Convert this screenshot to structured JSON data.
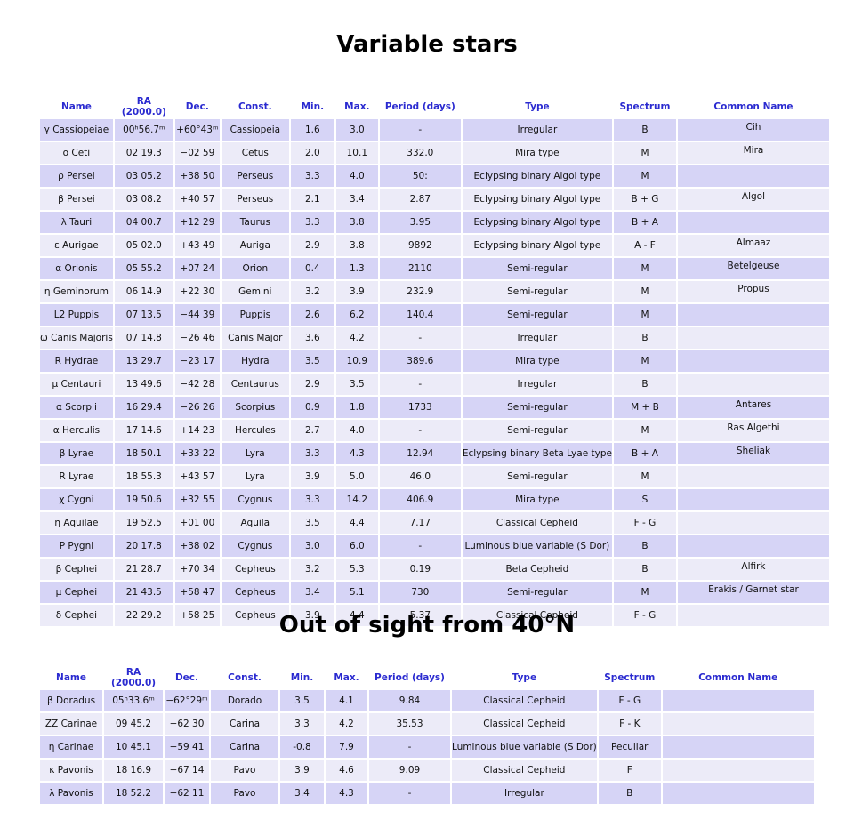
{
  "sections": [
    {
      "title": "Variable stars",
      "headers": [
        "Name",
        "RA (2000.0)",
        "Dec.",
        "Const.",
        "Min.",
        "Max.",
        "Period (days)",
        "Type",
        "Spectrum",
        "Common Name"
      ],
      "rows": [
        {
          "name": "γ Cassiopeiae",
          "ra": "00ʰ56.7ᵐ",
          "dec": "+60°43ᵐ",
          "const": "Cassiopeia",
          "min": "1.6",
          "max": "3.0",
          "period": "-",
          "type": "Irregular",
          "spectrum": "B",
          "common": "Cih"
        },
        {
          "name": "ο Ceti",
          "ra": "02 19.3",
          "dec": "−02 59",
          "const": "Cetus",
          "min": "2.0",
          "max": "10.1",
          "period": "332.0",
          "type": "Mira type",
          "spectrum": "M",
          "common": "Mira"
        },
        {
          "name": "ρ Persei",
          "ra": "03 05.2",
          "dec": "+38 50",
          "const": "Perseus",
          "min": "3.3",
          "max": "4.0",
          "period": "50:",
          "type": "Eclypsing binary Algol type",
          "spectrum": "M"
        },
        {
          "name": "β Persei",
          "ra": "03 08.2",
          "dec": "+40 57",
          "const": "Perseus",
          "min": "2.1",
          "max": "3.4",
          "period": "2.87",
          "type": "Eclypsing binary Algol type",
          "spectrum": "B + G",
          "common": "Algol"
        },
        {
          "name": "λ Tauri",
          "ra": "04 00.7",
          "dec": "+12 29",
          "const": "Taurus",
          "min": "3.3",
          "max": "3.8",
          "period": "3.95",
          "type": "Eclypsing binary Algol type",
          "spectrum": "B + A"
        },
        {
          "name": "ε Aurigae",
          "ra": "05 02.0",
          "dec": "+43 49",
          "const": "Auriga",
          "min": "2.9",
          "max": "3.8",
          "period": "9892",
          "type": "Eclypsing binary Algol type",
          "spectrum": "A - F",
          "common": "Almaaz"
        },
        {
          "name": "α Orionis",
          "ra": "05 55.2",
          "dec": "+07 24",
          "const": "Orion",
          "min": "0.4",
          "max": "1.3",
          "period": "2110",
          "type": "Semi-regular",
          "spectrum": "M",
          "common": "Betelgeuse"
        },
        {
          "name": "η Geminorum",
          "ra": "06 14.9",
          "dec": "+22 30",
          "const": "Gemini",
          "min": "3.2",
          "max": "3.9",
          "period": "232.9",
          "type": "Semi-regular",
          "spectrum": "M",
          "common": "Propus"
        },
        {
          "name": "L2 Puppis",
          "ra": "07 13.5",
          "dec": "−44 39",
          "const": "Puppis",
          "min": "2.6",
          "max": "6.2",
          "period": "140.4",
          "type": "Semi-regular",
          "spectrum": "M"
        },
        {
          "name": "ω Canis Majoris",
          "ra": "07 14.8",
          "dec": "−26 46",
          "const": "Canis Major",
          "min": "3.6",
          "max": "4.2",
          "period": "-",
          "type": "Irregular",
          "spectrum": "B"
        },
        {
          "name": "R Hydrae",
          "ra": "13 29.7",
          "dec": "−23 17",
          "const": "Hydra",
          "min": "3.5",
          "max": "10.9",
          "period": "389.6",
          "type": "Mira type",
          "spectrum": "M"
        },
        {
          "name": "μ Centauri",
          "ra": "13 49.6",
          "dec": "−42 28",
          "const": "Centaurus",
          "min": "2.9",
          "max": "3.5",
          "period": "-",
          "type": "Irregular",
          "spectrum": "B"
        },
        {
          "name": "α Scorpii",
          "ra": "16 29.4",
          "dec": "−26 26",
          "const": "Scorpius",
          "min": "0.9",
          "max": "1.8",
          "period": "1733",
          "type": "Semi-regular",
          "spectrum": "M + B",
          "common": "Antares"
        },
        {
          "name": "α Herculis",
          "ra": "17 14.6",
          "dec": "+14 23",
          "const": "Hercules",
          "min": "2.7",
          "max": "4.0",
          "period": "-",
          "type": "Semi-regular",
          "spectrum": "M",
          "common": "Ras Algethi"
        },
        {
          "name": "β Lyrae",
          "ra": "18 50.1",
          "dec": "+33 22",
          "const": "Lyra",
          "min": "3.3",
          "max": "4.3",
          "period": "12.94",
          "type": "Eclypsing binary Beta Lyae type",
          "spectrum": "B + A",
          "common": "Sheliak"
        },
        {
          "name": "R Lyrae",
          "ra": "18 55.3",
          "dec": "+43 57",
          "const": "Lyra",
          "min": "3.9",
          "max": "5.0",
          "period": "46.0",
          "type": "Semi-regular",
          "spectrum": "M"
        },
        {
          "name": "χ Cygni",
          "ra": "19 50.6",
          "dec": "+32 55",
          "const": "Cygnus",
          "min": "3.3",
          "max": "14.2",
          "period": "406.9",
          "type": "Mira type",
          "spectrum": "S"
        },
        {
          "name": "η Aquilae",
          "ra": "19 52.5",
          "dec": "+01 00",
          "const": "Aquila",
          "min": "3.5",
          "max": "4.4",
          "period": "7.17",
          "type": "Classical Cepheid",
          "spectrum": "F - G"
        },
        {
          "name": "P Pygni",
          "ra": "20 17.8",
          "dec": "+38 02",
          "const": "Cygnus",
          "min": "3.0",
          "max": "6.0",
          "period": "-",
          "type": "Luminous blue variable (S Dor)",
          "spectrum": "B"
        },
        {
          "name": "β Cephei",
          "ra": "21 28.7",
          "dec": "+70 34",
          "const": "Cepheus",
          "min": "3.2",
          "max": "5.3",
          "period": "0.19",
          "type": "Beta Cepheid",
          "spectrum": "B",
          "common": "Alfirk"
        },
        {
          "name": "μ Cephei",
          "ra": "21 43.5",
          "dec": "+58 47",
          "const": "Cepheus",
          "min": "3.4",
          "max": "5.1",
          "period": "730",
          "type": "Semi-regular",
          "spectrum": "M",
          "common": "Erakis / Garnet star"
        },
        {
          "name": "δ Cephei",
          "ra": "22 29.2",
          "dec": "+58 25",
          "const": "Cepheus",
          "min": "3.9",
          "max": "4.4",
          "period": "5.37",
          "type": "Classical Cepheid",
          "spectrum": "F - G"
        }
      ]
    },
    {
      "title": "Out of sight from 40°N",
      "headers": [
        "Name",
        "RA (2000.0)",
        "Dec.",
        "Const.",
        "Min.",
        "Max.",
        "Period (days)",
        "Type",
        "Spectrum",
        "Common Name"
      ],
      "rows": [
        {
          "name": "β Doradus",
          "ra": "05ʰ33.6ᵐ",
          "dec": "−62°29ᵐ",
          "const": "Dorado",
          "min": "3.5",
          "max": "4.1",
          "period": "9.84",
          "type": "Classical Cepheid",
          "spectrum": "F - G"
        },
        {
          "name": "ZZ Carinae",
          "ra": "09 45.2",
          "dec": "−62 30",
          "const": "Carina",
          "min": "3.3",
          "max": "4.2",
          "period": "35.53",
          "type": "Classical Cepheid",
          "spectrum": "F - K"
        },
        {
          "name": "η Carinae",
          "ra": "10 45.1",
          "dec": "−59 41",
          "const": "Carina",
          "min": "-0.8",
          "max": "7.9",
          "period": "-",
          "type": "Luminous blue variable (S Dor)",
          "spectrum": "Peculiar"
        },
        {
          "name": "κ Pavonis",
          "ra": "18 16.9",
          "dec": "−67 14",
          "const": "Pavo",
          "min": "3.9",
          "max": "4.6",
          "period": "9.09",
          "type": "Classical Cepheid",
          "spectrum": "F"
        },
        {
          "name": "λ Pavonis",
          "ra": "18 52.2",
          "dec": "−62 11",
          "const": "Pavo",
          "min": "3.4",
          "max": "4.3",
          "period": "-",
          "type": "Irregular",
          "spectrum": "B"
        }
      ]
    }
  ]
}
